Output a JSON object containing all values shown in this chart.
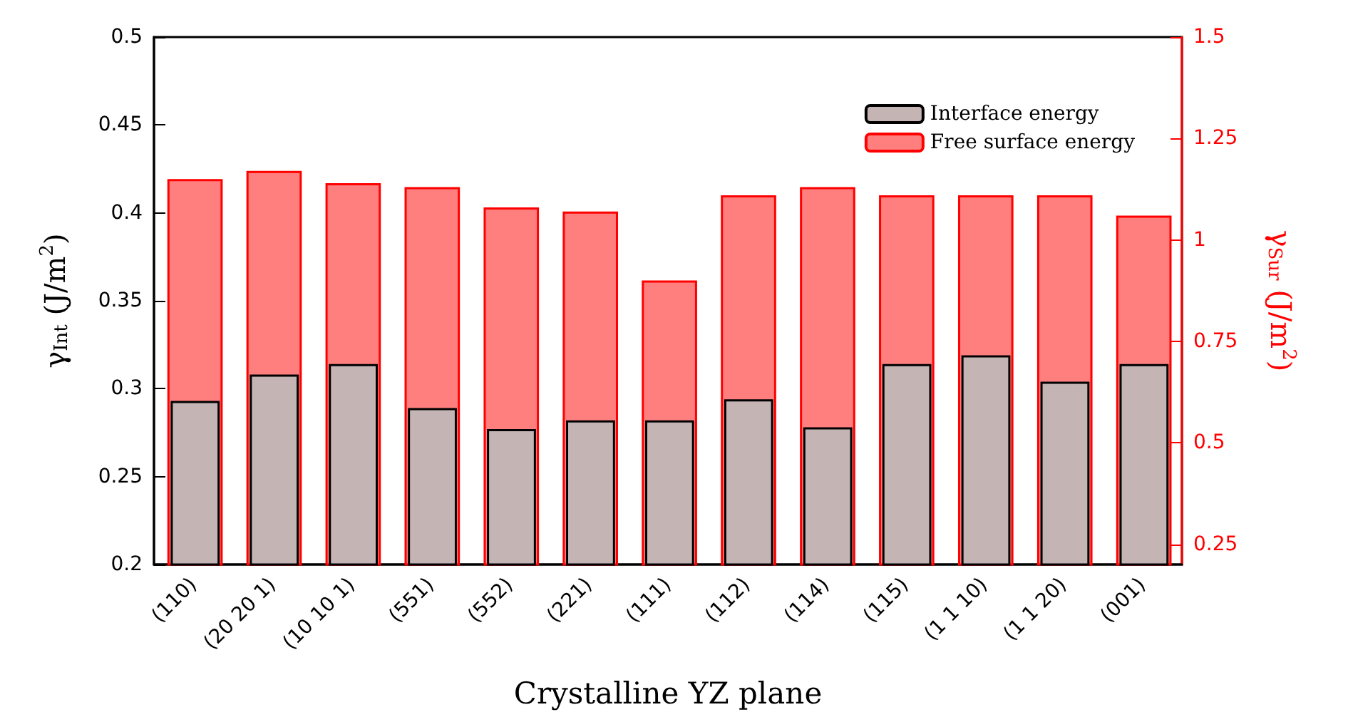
{
  "chart_data": {
    "type": "bar",
    "xlabel": "Crystalline YZ plane",
    "ylabel": "γ$_{Int}$ (J/m$^{2}$)",
    "y2label": "γ$_{Sur}$ (J/m$^{2}$)",
    "categories": [
      "(110)",
      "(20 20 1)",
      "(10 10 1)",
      "(551)",
      "(552)",
      "(221)",
      "(111)",
      "(112)",
      "(114)",
      "(115)",
      "(1 1 10)",
      "(1 1 20)",
      "(001)"
    ],
    "series": [
      {
        "name": "Free surface energy",
        "color": "#ff7f7f",
        "axis": "y2",
        "values": [
          1.15,
          1.17,
          1.14,
          1.13,
          1.08,
          1.07,
          0.9,
          1.11,
          1.13,
          1.11,
          1.11,
          1.11,
          1.06
        ]
      },
      {
        "name": "Interface energy",
        "color": "#c4b4b4",
        "values": [
          0.293,
          0.308,
          0.314,
          0.289,
          0.277,
          0.282,
          0.282,
          0.294,
          0.278,
          0.314,
          0.319,
          0.304,
          0.314
        ]
      }
    ],
    "ylim": [
      0.2,
      0.5
    ],
    "yticks": [
      0.2,
      0.25,
      0.3,
      0.35,
      0.4,
      0.45,
      0.5
    ],
    "y2lim": [
      0.2,
      1.5
    ],
    "y2ticks": [
      0.25,
      0.5,
      0.75,
      1,
      1.25,
      1.5
    ],
    "grid": false,
    "legend": "top right"
  }
}
